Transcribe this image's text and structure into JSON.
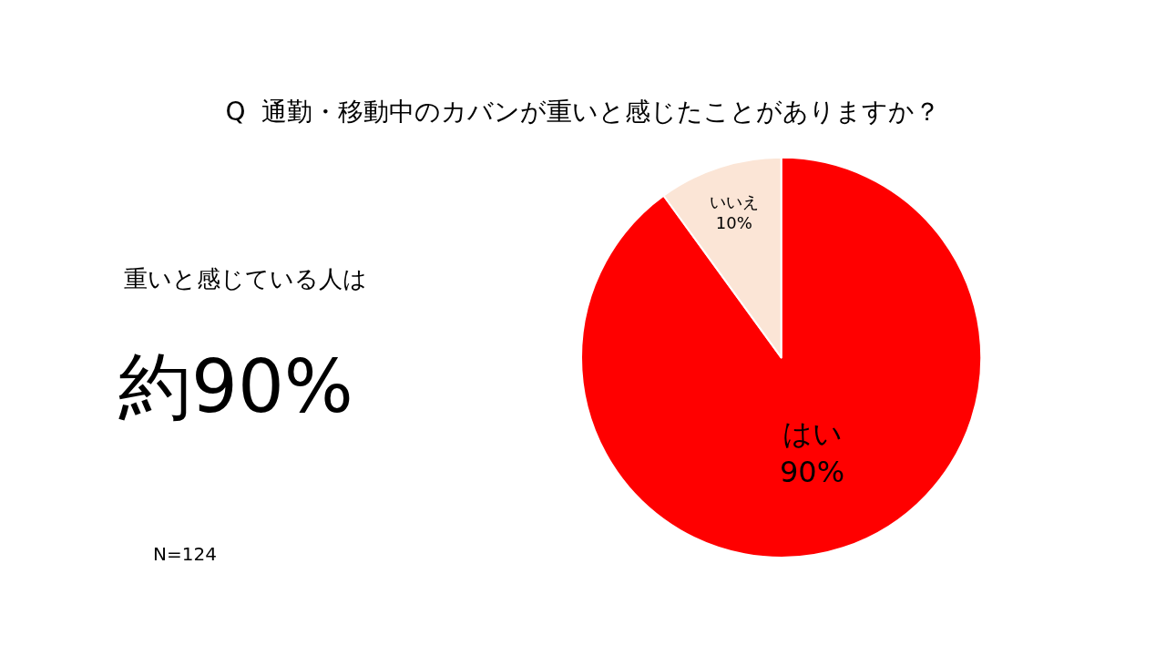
{
  "chart_data": {
    "type": "pie",
    "title": "Q  通勤・移動中のカバンが重いと感じたことがありますか？",
    "categories": [
      "はい",
      "いいえ"
    ],
    "values": [
      90,
      10
    ],
    "colors": [
      "#ff0000",
      "#fbe5d6"
    ],
    "value_labels": [
      "90%",
      "10%"
    ],
    "legend": false,
    "annotations": [
      "重いと感じている人は",
      "約90%",
      "N=124"
    ]
  }
}
